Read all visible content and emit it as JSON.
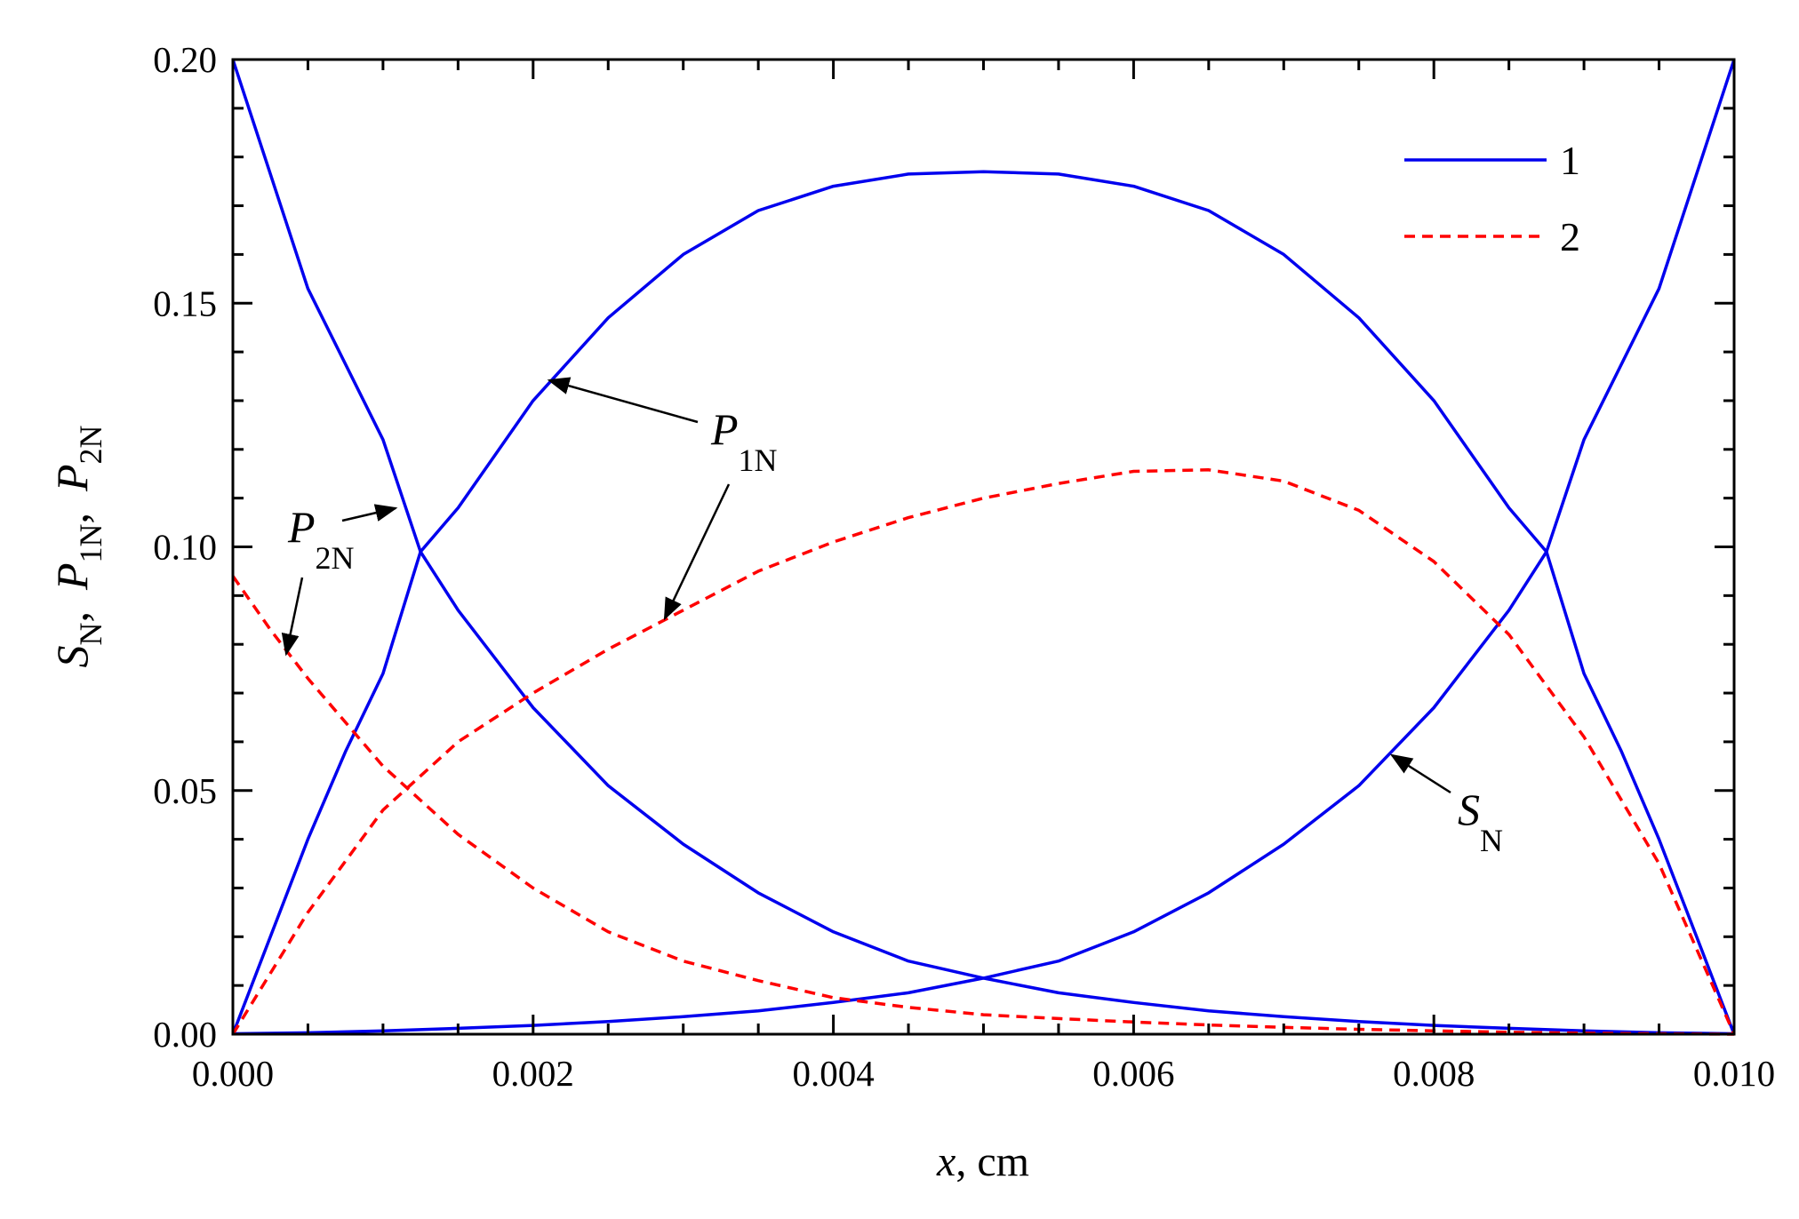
{
  "chart_data": {
    "type": "line",
    "xlabel_var": "x",
    "xlabel_unit": ", cm",
    "ylabel": {
      "s": "S",
      "s_sub": "N",
      "p1": "P",
      "p1_sub": "1N",
      "p2": "P",
      "p2_sub": "2N",
      "sep": ","
    },
    "xlim": [
      0,
      0.01
    ],
    "ylim": [
      0,
      0.2
    ],
    "xticks": [
      "0.000",
      "0.002",
      "0.004",
      "0.006",
      "0.008",
      "0.010"
    ],
    "yticks": [
      "0.00",
      "0.05",
      "0.10",
      "0.15",
      "0.20"
    ],
    "grid": false,
    "legend_position": "top-right",
    "legend": [
      {
        "label": "1",
        "color": "#0000ee",
        "style": "solid"
      },
      {
        "label": "2",
        "color": "#ff0000",
        "style": "dashed"
      }
    ],
    "annotations": [
      {
        "text": "P",
        "sub": "1N"
      },
      {
        "text": "P",
        "sub": "2N"
      },
      {
        "text": "S",
        "sub": "N"
      }
    ],
    "series": [
      {
        "group": "1",
        "color": "#0000ee",
        "style": "solid",
        "points": [
          [
            0,
            0.2
          ],
          [
            0.0005,
            0.153
          ],
          [
            0.001,
            0.122
          ],
          [
            0.00125,
            0.099
          ],
          [
            0.0015,
            0.087
          ],
          [
            0.002,
            0.067
          ],
          [
            0.0025,
            0.051
          ],
          [
            0.003,
            0.039
          ],
          [
            0.0035,
            0.029
          ],
          [
            0.004,
            0.021
          ],
          [
            0.0045,
            0.015
          ],
          [
            0.005,
            0.0115
          ],
          [
            0.0055,
            0.0085
          ],
          [
            0.006,
            0.0065
          ],
          [
            0.0065,
            0.0048
          ],
          [
            0.007,
            0.0036
          ],
          [
            0.0075,
            0.0026
          ],
          [
            0.008,
            0.0018
          ],
          [
            0.0085,
            0.0012
          ],
          [
            0.009,
            0.0007
          ],
          [
            0.0095,
            0.0003
          ],
          [
            0.01,
            0.0001
          ]
        ]
      },
      {
        "group": "1",
        "color": "#0000ee",
        "style": "solid",
        "points": [
          [
            0,
            0.0001
          ],
          [
            0.0005,
            0.0003
          ],
          [
            0.001,
            0.0007
          ],
          [
            0.0015,
            0.0012
          ],
          [
            0.002,
            0.0018
          ],
          [
            0.0025,
            0.0026
          ],
          [
            0.003,
            0.0036
          ],
          [
            0.0035,
            0.0048
          ],
          [
            0.004,
            0.0065
          ],
          [
            0.0045,
            0.0085
          ],
          [
            0.005,
            0.0115
          ],
          [
            0.0055,
            0.015
          ],
          [
            0.006,
            0.021
          ],
          [
            0.0065,
            0.029
          ],
          [
            0.007,
            0.039
          ],
          [
            0.0075,
            0.051
          ],
          [
            0.008,
            0.067
          ],
          [
            0.0085,
            0.087
          ],
          [
            0.00875,
            0.099
          ],
          [
            0.009,
            0.122
          ],
          [
            0.0095,
            0.153
          ],
          [
            0.01,
            0.2
          ]
        ]
      },
      {
        "group": "1",
        "color": "#0000ee",
        "style": "solid",
        "points": [
          [
            0,
            0
          ],
          [
            0.00025,
            0.02
          ],
          [
            0.0005,
            0.04
          ],
          [
            0.00075,
            0.058
          ],
          [
            0.001,
            0.074
          ],
          [
            0.00125,
            0.099
          ],
          [
            0.0015,
            0.108
          ],
          [
            0.002,
            0.13
          ],
          [
            0.0025,
            0.147
          ],
          [
            0.003,
            0.16
          ],
          [
            0.0035,
            0.169
          ],
          [
            0.004,
            0.174
          ],
          [
            0.0045,
            0.1765
          ],
          [
            0.005,
            0.177
          ],
          [
            0.0055,
            0.1765
          ],
          [
            0.006,
            0.174
          ],
          [
            0.0065,
            0.169
          ],
          [
            0.007,
            0.16
          ],
          [
            0.0075,
            0.147
          ],
          [
            0.008,
            0.13
          ],
          [
            0.0085,
            0.108
          ],
          [
            0.00875,
            0.099
          ],
          [
            0.009,
            0.074
          ],
          [
            0.00925,
            0.058
          ],
          [
            0.0095,
            0.04
          ],
          [
            0.00975,
            0.02
          ],
          [
            0.01,
            0
          ]
        ]
      },
      {
        "group": "2",
        "color": "#ff0000",
        "style": "dashed",
        "points": [
          [
            0,
            0.094
          ],
          [
            0.00025,
            0.083
          ],
          [
            0.0005,
            0.073
          ],
          [
            0.001,
            0.055
          ],
          [
            0.0015,
            0.041
          ],
          [
            0.002,
            0.03
          ],
          [
            0.0025,
            0.021
          ],
          [
            0.003,
            0.015
          ],
          [
            0.0035,
            0.011
          ],
          [
            0.004,
            0.0075
          ],
          [
            0.0045,
            0.0055
          ],
          [
            0.005,
            0.004
          ],
          [
            0.0055,
            0.0032
          ],
          [
            0.006,
            0.0025
          ],
          [
            0.0065,
            0.0019
          ],
          [
            0.007,
            0.0014
          ],
          [
            0.0075,
            0.001
          ],
          [
            0.008,
            0.0007
          ],
          [
            0.0085,
            0.0004
          ],
          [
            0.009,
            0.0002
          ],
          [
            0.0095,
            0.0001
          ],
          [
            0.01,
            0
          ]
        ]
      },
      {
        "group": "2",
        "color": "#ff0000",
        "style": "dashed",
        "points": [
          [
            0,
            0
          ],
          [
            0.0005,
            0.025
          ],
          [
            0.001,
            0.046
          ],
          [
            0.0015,
            0.06
          ],
          [
            0.002,
            0.07
          ],
          [
            0.0025,
            0.079
          ],
          [
            0.003,
            0.087
          ],
          [
            0.0035,
            0.095
          ],
          [
            0.004,
            0.101
          ],
          [
            0.0045,
            0.106
          ],
          [
            0.005,
            0.11
          ],
          [
            0.0055,
            0.113
          ],
          [
            0.006,
            0.1155
          ],
          [
            0.0065,
            0.1158
          ],
          [
            0.007,
            0.1135
          ],
          [
            0.0075,
            0.1075
          ],
          [
            0.008,
            0.097
          ],
          [
            0.0085,
            0.082
          ],
          [
            0.009,
            0.061
          ],
          [
            0.0095,
            0.035
          ],
          [
            0.01,
            0
          ]
        ]
      }
    ]
  }
}
